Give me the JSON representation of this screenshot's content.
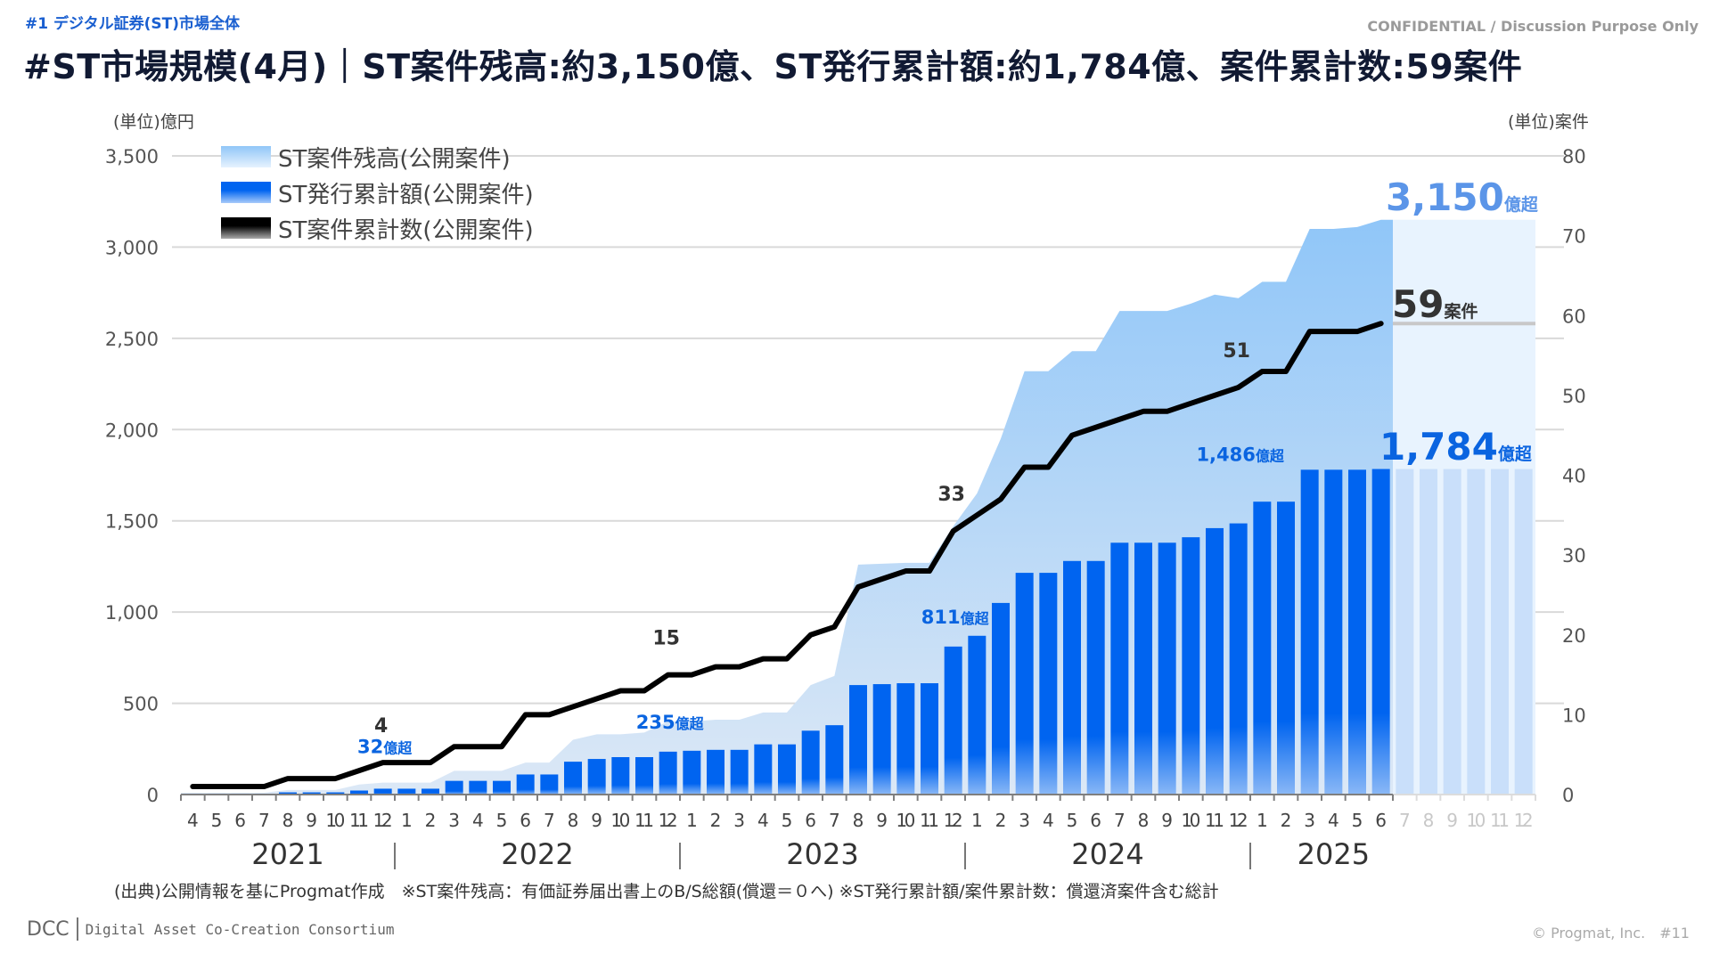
{
  "header": {
    "section_label": "#1 デジタル証券(ST)市場全体",
    "confidential": "CONFIDENTIAL / Discussion Purpose Only",
    "title": "#ST市場規模(4月)｜ST案件残高:約3,150億、ST発行累計額:約1,784億、案件累計数:59案件"
  },
  "footer": {
    "source_note": "(出典)公開情報を基にProgmat作成　※ST案件残高：有価証券届出書上のB/S総額(償還＝０へ) ※ST発行累計額/案件累計数：償還済案件含む総計",
    "logo": "DCC",
    "org_name": "Digital Asset Co-Creation Consortium",
    "copyright": "© Progmat, Inc.　#11"
  },
  "colors": {
    "balance_area": "#90c6f8",
    "issuance_bar": "#0064f0",
    "count_line": "#000000",
    "balance_label": "#5b95e8",
    "issuance_label": "#0a64e0",
    "forecast_area": "#e8f3fe",
    "forecast_bar": "#c9dffa"
  },
  "chart_data": {
    "type": "bar",
    "title": "",
    "ylabel": "(単位)億円",
    "y2label": "(単位)案件",
    "ylim": [
      0,
      3500
    ],
    "y2lim": [
      0,
      80
    ],
    "yticks": [
      "0",
      "500",
      "1,000",
      "1,500",
      "2,000",
      "2,500",
      "3,000",
      "3,500"
    ],
    "yticks_values": [
      0,
      500,
      1000,
      1500,
      2000,
      2500,
      3000,
      3500
    ],
    "y2ticks": [
      "0",
      "10",
      "20",
      "30",
      "40",
      "50",
      "60",
      "70",
      "80"
    ],
    "y2ticks_values": [
      0,
      10,
      20,
      30,
      40,
      50,
      60,
      70,
      80
    ],
    "grid": true,
    "legend_position": "top-left",
    "legend": [
      "ST案件残高(公開案件)",
      "ST発行累計額(公開案件)",
      "ST案件累計数(公開案件)"
    ],
    "years": [
      "2021",
      "2022",
      "2023",
      "2024",
      "2025"
    ],
    "months": [
      "4",
      "5",
      "6",
      "7",
      "8",
      "9",
      "10",
      "11",
      "12",
      "1",
      "2",
      "3",
      "4",
      "5",
      "6",
      "7",
      "8",
      "9",
      "10",
      "11",
      "12",
      "1",
      "2",
      "3",
      "4",
      "5",
      "6",
      "7",
      "8",
      "9",
      "10",
      "11",
      "12",
      "1",
      "2",
      "3",
      "4",
      "5",
      "6",
      "7",
      "8",
      "9",
      "10",
      "11",
      "12",
      "1",
      "2",
      "3",
      "4",
      "5",
      "6",
      "7",
      "8",
      "9",
      "10",
      "11",
      "12"
    ],
    "actual_months_count": 51,
    "series": [
      {
        "name": "ST案件残高(公開案件)",
        "type": "area",
        "axis": "left",
        "values": [
          10,
          10,
          10,
          10,
          25,
          25,
          25,
          55,
          65,
          65,
          65,
          130,
          130,
          130,
          175,
          175,
          300,
          330,
          330,
          340,
          400,
          400,
          410,
          410,
          450,
          450,
          600,
          650,
          1260,
          1265,
          1270,
          1270,
          1470,
          1650,
          1950,
          2320,
          2320,
          2430,
          2430,
          2650,
          2650,
          2650,
          2690,
          2740,
          2720,
          2810,
          2810,
          3100,
          3100,
          3110,
          3150
        ]
      },
      {
        "name": "ST発行累計額(公開案件)",
        "type": "bar",
        "axis": "left",
        "values": [
          5,
          5,
          5,
          5,
          12,
          12,
          12,
          22,
          32,
          32,
          32,
          75,
          75,
          75,
          110,
          110,
          180,
          195,
          205,
          205,
          235,
          240,
          245,
          245,
          275,
          275,
          350,
          380,
          600,
          605,
          610,
          610,
          811,
          870,
          1050,
          1215,
          1215,
          1280,
          1280,
          1380,
          1380,
          1380,
          1410,
          1460,
          1486,
          1605,
          1605,
          1780,
          1780,
          1780,
          1784
        ]
      },
      {
        "name": "ST案件累計数(公開案件)",
        "type": "line",
        "axis": "right",
        "values": [
          1,
          1,
          1,
          1,
          2,
          2,
          2,
          3,
          4,
          4,
          4,
          6,
          6,
          6,
          10,
          10,
          11,
          12,
          13,
          13,
          15,
          15,
          16,
          16,
          17,
          17,
          20,
          21,
          26,
          27,
          28,
          28,
          33,
          35,
          37,
          41,
          41,
          45,
          46,
          47,
          48,
          48,
          49,
          50,
          51,
          53,
          53,
          58,
          58,
          58,
          59
        ]
      }
    ],
    "annotations": {
      "count_labels": [
        {
          "index": 8,
          "text": "4"
        },
        {
          "index": 20,
          "text": "15"
        },
        {
          "index": 32,
          "text": "33"
        },
        {
          "index": 44,
          "text": "51"
        }
      ],
      "issuance_labels": [
        {
          "index": 8,
          "value": "32",
          "suffix": "億超"
        },
        {
          "index": 20,
          "value": "235",
          "suffix": "億超"
        },
        {
          "index": 32,
          "value": "811",
          "suffix": "億超"
        },
        {
          "index": 44,
          "value": "1,486",
          "suffix": "億超"
        }
      ],
      "final_balance": {
        "value": "3,150",
        "suffix": "億超"
      },
      "final_issuance": {
        "value": "1,784",
        "suffix": "億超"
      },
      "final_count": {
        "value": "59",
        "suffix": "案件"
      }
    }
  }
}
